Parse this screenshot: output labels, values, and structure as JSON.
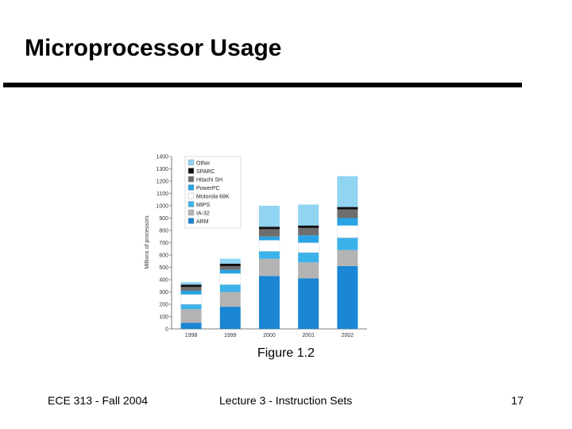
{
  "slide": {
    "title": "Microprocessor Usage",
    "caption": "Figure 1.2",
    "footer_left": "ECE 313 - Fall 2004",
    "footer_center": "Lecture 3 - Instruction Sets",
    "page_number": "17"
  },
  "chart_data": {
    "type": "bar",
    "stacked": true,
    "title": "",
    "xlabel": "",
    "ylabel": "Millions of processors",
    "ylim": [
      0,
      1400
    ],
    "yticks": [
      0,
      100,
      200,
      300,
      400,
      500,
      600,
      700,
      800,
      900,
      1000,
      1100,
      1200,
      1300,
      1400
    ],
    "categories": [
      "1998",
      "1999",
      "2000",
      "2001",
      "2002"
    ],
    "legend_position": "top-left",
    "series": [
      {
        "name": "ARM",
        "color": "#1a86d4",
        "values": [
          50,
          180,
          430,
          410,
          510
        ]
      },
      {
        "name": "IA-32",
        "color": "#b3b3b3",
        "values": [
          110,
          120,
          140,
          130,
          130
        ]
      },
      {
        "name": "MIPS",
        "color": "#3cb2ea",
        "values": [
          40,
          60,
          60,
          80,
          100
        ]
      },
      {
        "name": "Motorola 68K",
        "color": "#ffffff",
        "values": [
          80,
          90,
          90,
          80,
          100
        ]
      },
      {
        "name": "PowerPC",
        "color": "#29a3e6",
        "values": [
          30,
          30,
          30,
          60,
          60
        ]
      },
      {
        "name": "Hitachi SH",
        "color": "#6e6e6e",
        "values": [
          30,
          30,
          60,
          60,
          70
        ]
      },
      {
        "name": "SPARC",
        "color": "#111111",
        "values": [
          20,
          20,
          20,
          20,
          20
        ]
      },
      {
        "name": "Other",
        "color": "#90d4f2",
        "values": [
          20,
          40,
          170,
          170,
          250
        ]
      }
    ]
  }
}
